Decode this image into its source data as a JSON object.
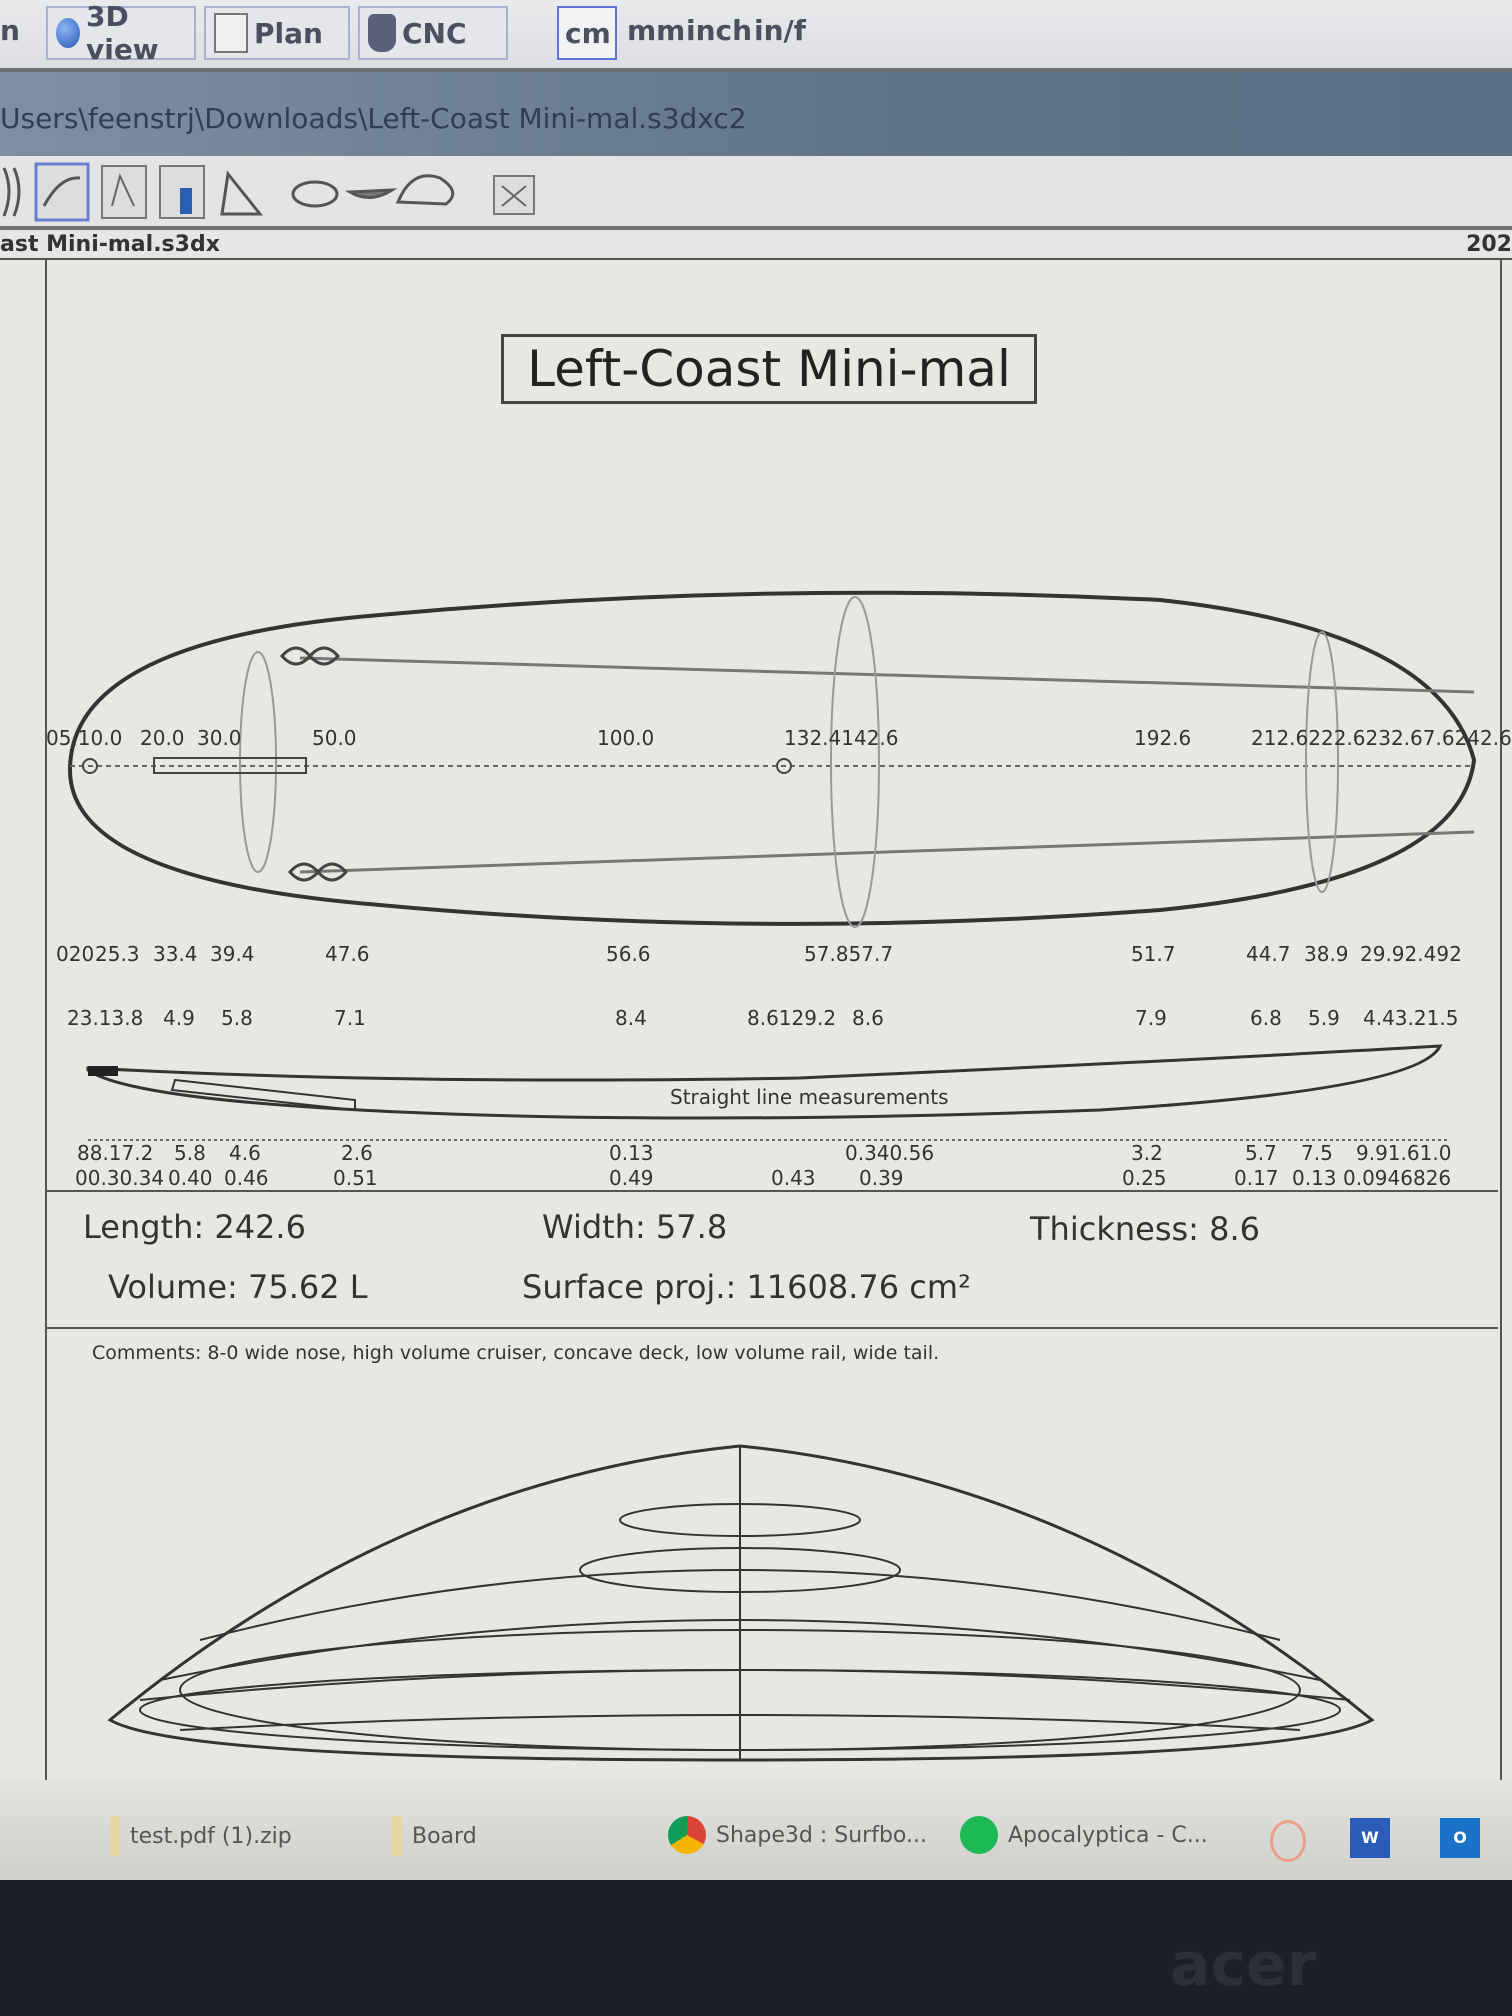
{
  "toolbar": {
    "partial_left": "n",
    "buttons": [
      {
        "label": "3D view",
        "icon": "globe-icon"
      },
      {
        "label": "Plan",
        "icon": "plan-icon"
      },
      {
        "label": "CNC",
        "icon": "cnc-icon"
      }
    ],
    "units": [
      "cm",
      "mm",
      "inch",
      "in/f"
    ],
    "selected_unit": "cm"
  },
  "titlebar": {
    "path": "Users\\feenstrj\\Downloads\\Left-Coast Mini-mal.s3dxc2"
  },
  "iconbar": {
    "icons": [
      "board-outline-icon",
      "plan-view-icon",
      "profile-view-icon",
      "slice-view-icon",
      "rail-icon",
      "ellipse-icon",
      "bottom-shape-icon",
      "deck-shape-icon",
      "export-icon"
    ]
  },
  "doctab": {
    "filename": "ast Mini-mal.s3dx",
    "right_text": "202"
  },
  "sheet": {
    "title": "Left-Coast Mini-mal",
    "positions": [
      "05.10.0",
      "20.0",
      "30.0",
      "50.0",
      "100.0",
      "132.4142.6",
      "192.6",
      "212.6222.6232.67.6242.6"
    ],
    "widths": [
      "020",
      "25.3",
      "33.4",
      "39.4",
      "47.6",
      "56.6",
      "57.857.7",
      "51.7",
      "44.7",
      "38.9",
      "29.92.492"
    ],
    "thicknesses": [
      "23.13.8",
      "4.9",
      "5.8",
      "7.1",
      "8.4",
      "8.6129.2",
      "8.6",
      "7.9",
      "6.8",
      "5.9",
      "4.43.21.5"
    ],
    "profile_label": "Straight line measurements",
    "rocker": [
      "88.17.2",
      "5.8",
      "4.6",
      "2.6",
      "0.13",
      "0.340.56",
      "3.2",
      "5.7",
      "7.5",
      "9.91.61.0"
    ],
    "rocker_ratio": [
      "00.30.34",
      "0.40",
      "0.46",
      "0.51",
      "0.49",
      "0.43",
      "0.39",
      "0.25",
      "0.17",
      "0.13",
      "0.0946826"
    ],
    "length": "Length: 242.6",
    "width": "Width: 57.8",
    "thickness": "Thickness: 8.6",
    "volume": "Volume: 75.62 L",
    "surface": "Surface proj.: 11608.76 cm²",
    "comments": "Comments: 8-0 wide nose, high volume cruiser, concave deck, low volume rail, wide tail."
  },
  "taskbar": {
    "items": [
      {
        "label": "test.pdf (1).zip",
        "icon": "folder-icon"
      },
      {
        "label": "Board",
        "icon": "folder-icon"
      },
      {
        "label": "Shape3d : Surfbo...",
        "icon": "chrome-icon"
      },
      {
        "label": "Apocalyptica - C...",
        "icon": "spotify-icon"
      }
    ],
    "pinned": [
      "snipping-icon",
      "word-icon",
      "outlook-icon"
    ]
  },
  "bezel": {
    "brand": "acer"
  }
}
